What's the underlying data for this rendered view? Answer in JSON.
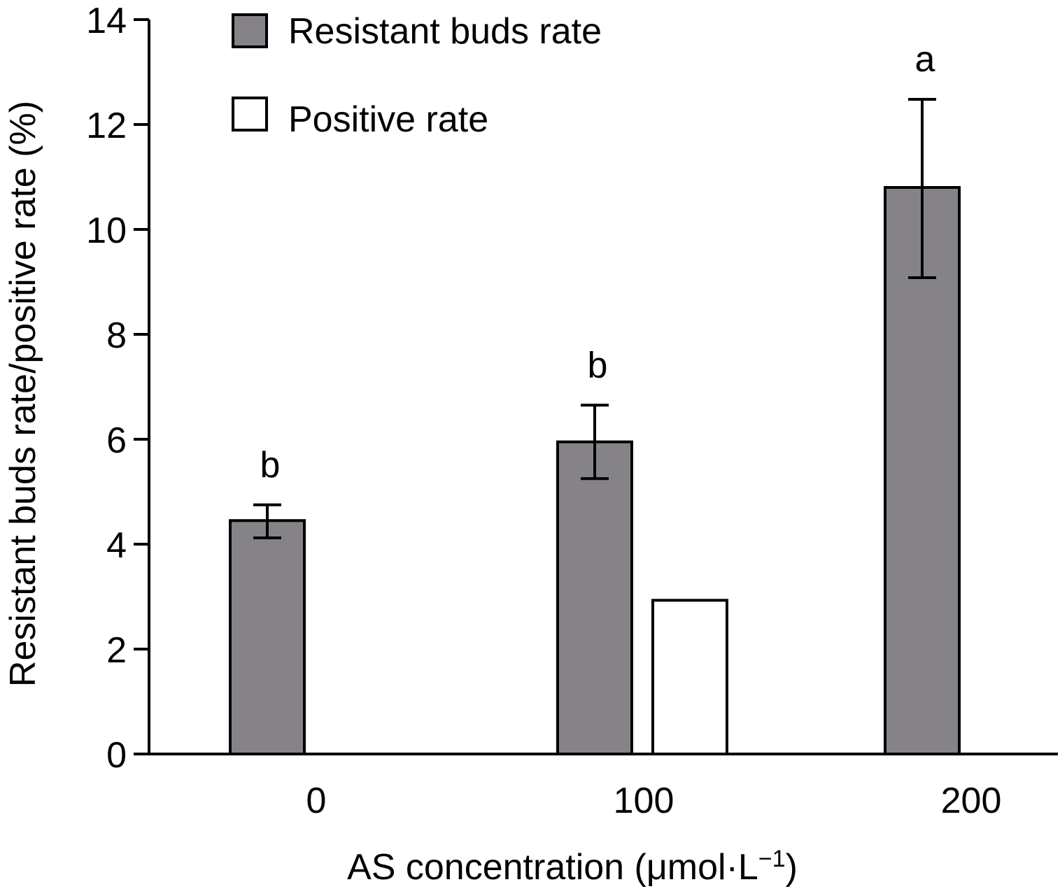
{
  "chart_data": {
    "type": "bar",
    "categories": [
      "0",
      "100",
      "200"
    ],
    "xlabel": "AS concentration (μmol·L",
    "xlabel_sup": "−1",
    "xlabel_end": ")",
    "ylabel": "Resistant buds rate/positive rate (%)",
    "ylim": [
      0,
      14
    ],
    "yticks": [
      "0",
      "2",
      "4",
      "6",
      "8",
      "10",
      "12",
      "14"
    ],
    "grid": false,
    "legend_position": "top-left",
    "series": [
      {
        "name": "Resistant buds rate",
        "color": "#858388",
        "values": [
          4.45,
          5.95,
          10.8
        ],
        "error_low": [
          4.12,
          5.25,
          9.08
        ],
        "error_high": [
          4.75,
          6.65,
          12.48
        ],
        "significance": [
          "b",
          "b",
          "a"
        ]
      },
      {
        "name": "Positive rate",
        "color": "#ffffff",
        "values": [
          null,
          2.93,
          null
        ]
      }
    ]
  }
}
